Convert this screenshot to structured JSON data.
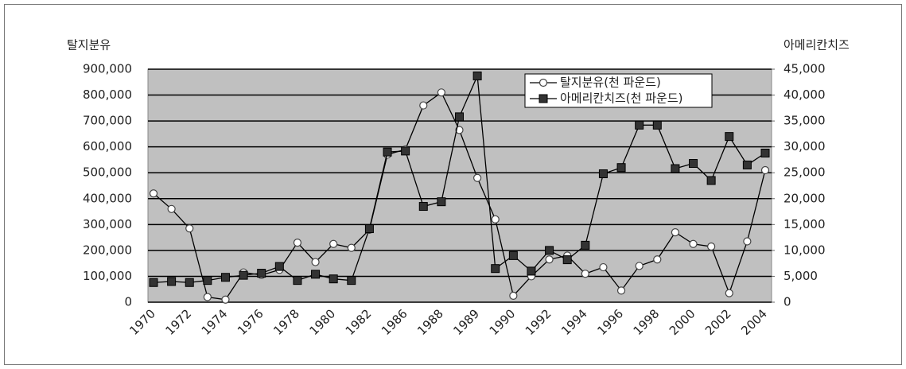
{
  "chart_data": {
    "type": "line",
    "ylabel": "탈지분유",
    "y2label": "아메리칸치즈",
    "categories": [
      "1970",
      null,
      "1972",
      null,
      "1974",
      null,
      "1976",
      null,
      "1978",
      null,
      "1980",
      null,
      "1982",
      null,
      "1986",
      null,
      "1988",
      null,
      "1989",
      null,
      "1990",
      null,
      "1992",
      null,
      "1994",
      null,
      "1996",
      null,
      "1998",
      null,
      "2000",
      null,
      "2002",
      null,
      "2004"
    ],
    "series": [
      {
        "name": "탈지분유(천 파운드)",
        "color": "#000000",
        "marker": "circle",
        "values": [
          420000,
          360000,
          285000,
          20000,
          10000,
          115000,
          105000,
          125000,
          230000,
          155000,
          225000,
          210000,
          280000,
          570000,
          590000,
          760000,
          810000,
          665000,
          480000,
          320000,
          25000,
          100000,
          165000,
          180000,
          110000,
          135000,
          45000,
          140000,
          165000,
          270000,
          225000,
          215000,
          35000,
          235000,
          510000
        ]
      },
      {
        "name": "아메리칸치즈(천 파운드)",
        "color": "#000000",
        "marker": "square",
        "axis": "y2",
        "values": [
          3800,
          4000,
          3800,
          4200,
          4800,
          5200,
          5600,
          6900,
          4200,
          5400,
          4500,
          4200,
          14200,
          29000,
          29200,
          18500,
          19400,
          35800,
          43700,
          6500,
          9000,
          6000,
          10000,
          8200,
          11000,
          24800,
          26000,
          34200,
          34200,
          25800,
          26800,
          23500,
          32000,
          26500,
          28800
        ]
      }
    ],
    "ylim": [
      0,
      900000
    ],
    "yticks": [
      0,
      {
        "value": 100000,
        "label": "100,000"
      },
      {
        "value": 200000,
        "label": "200,000"
      },
      {
        "value": 300000,
        "label": "300,000"
      },
      {
        "value": 400000,
        "label": "400,000"
      },
      {
        "value": 500000,
        "label": "500,000"
      },
      {
        "value": 600000,
        "label": "600,000"
      },
      {
        "value": 700000,
        "label": "700,000"
      },
      {
        "value": 800000,
        "label": "800,000"
      },
      {
        "value": 900000,
        "label": "900,000"
      }
    ],
    "y2lim": [
      0,
      45000
    ],
    "y2ticks": [
      0,
      {
        "value": 5000,
        "label": "5,000"
      },
      {
        "value": 10000,
        "label": "10,000"
      },
      {
        "value": 15000,
        "label": "15,000"
      },
      {
        "value": 20000,
        "label": "20,000"
      },
      {
        "value": 25000,
        "label": "25,000"
      },
      {
        "value": 30000,
        "label": "30,000"
      },
      {
        "value": 35000,
        "label": "35,000"
      },
      {
        "value": 40000,
        "label": "40,000"
      },
      {
        "value": 45000,
        "label": "45,000"
      }
    ],
    "grid": true,
    "legend": "top-right",
    "plot_background": "#c0c0c0"
  }
}
